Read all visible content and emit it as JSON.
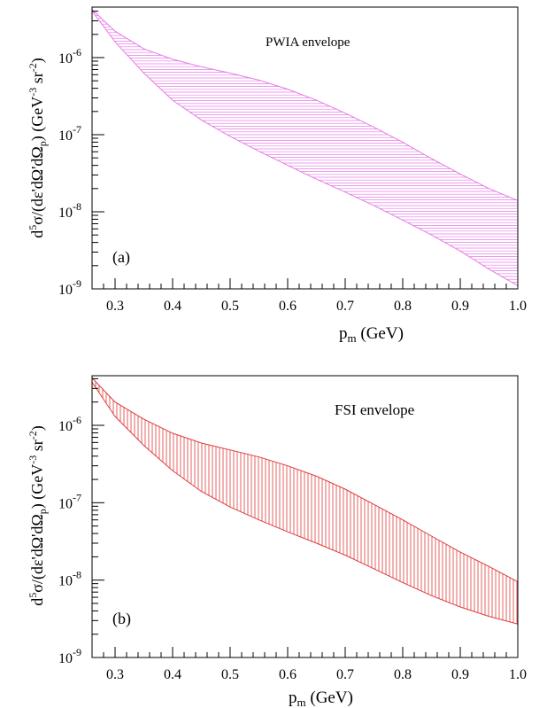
{
  "chart_data": [
    {
      "type": "area",
      "panel_label": "(a)",
      "annotation": "PWIA envelope",
      "xlabel_main": "p",
      "xlabel_sub": "m",
      "xlabel_unit": " (GeV)",
      "ylabel": "d^5σ/(dε'dΩ'dΩ_p) (GeV^-3 sr^-2)",
      "xscale": "linear",
      "yscale": "log",
      "xlim": [
        0.26,
        1.0
      ],
      "ylim": [
        1e-09,
        5e-06
      ],
      "xticks": [
        "0.3",
        "0.4",
        "0.5",
        "0.6",
        "0.7",
        "0.8",
        "0.9",
        "1.0"
      ],
      "yticks": [
        {
          "base": "10",
          "exp": "-9",
          "value": 1e-09
        },
        {
          "base": "10",
          "exp": "-8",
          "value": 1e-08
        },
        {
          "base": "10",
          "exp": "-7",
          "value": 1e-07
        },
        {
          "base": "10",
          "exp": "-6",
          "value": 1e-06
        }
      ],
      "fill_color": "#e67ae6",
      "hatch": "horizontal",
      "x": [
        0.26,
        0.3,
        0.35,
        0.4,
        0.45,
        0.5,
        0.55,
        0.6,
        0.65,
        0.7,
        0.75,
        0.8,
        0.85,
        0.9,
        0.95,
        1.0
      ],
      "upper": [
        4.2e-06,
        2.2e-06,
        1.3e-06,
        9.5e-07,
        7.6e-07,
        6.3e-07,
        5.1e-07,
        3.9e-07,
        2.8e-07,
        1.9e-07,
        1.25e-07,
        8e-08,
        4.9e-08,
        3.1e-08,
        2e-08,
        1.4e-08
      ],
      "lower": [
        4e-06,
        1.6e-06,
        6.3e-07,
        2.8e-07,
        1.55e-07,
        9.5e-08,
        6.1e-08,
        4e-08,
        2.65e-08,
        1.8e-08,
        1.2e-08,
        7.8e-09,
        5e-09,
        3.1e-09,
        1.8e-09,
        1.1e-09
      ]
    },
    {
      "type": "area",
      "panel_label": "(b)",
      "annotation": "FSI envelope",
      "xlabel_main": "p",
      "xlabel_sub": "m",
      "xlabel_unit": " (GeV)",
      "ylabel": "d^5σ/(dε'dΩ'dΩ_p) (GeV^-3 sr^-2)",
      "xscale": "linear",
      "yscale": "log",
      "xlim": [
        0.26,
        1.0
      ],
      "ylim": [
        1e-09,
        5e-06
      ],
      "xticks": [
        "0.3",
        "0.4",
        "0.5",
        "0.6",
        "0.7",
        "0.8",
        "0.9",
        "1.0"
      ],
      "yticks": [
        {
          "base": "10",
          "exp": "-9",
          "value": 1e-09
        },
        {
          "base": "10",
          "exp": "-8",
          "value": 1e-08
        },
        {
          "base": "10",
          "exp": "-7",
          "value": 1e-07
        },
        {
          "base": "10",
          "exp": "-6",
          "value": 1e-06
        }
      ],
      "fill_color": "#e03c3c",
      "hatch": "vertical",
      "x": [
        0.26,
        0.3,
        0.35,
        0.4,
        0.45,
        0.5,
        0.55,
        0.6,
        0.65,
        0.7,
        0.75,
        0.8,
        0.85,
        0.9,
        0.95,
        1.0
      ],
      "upper": [
        4.1e-06,
        2e-06,
        1.2e-06,
        7.9e-07,
        5.9e-07,
        4.8e-07,
        3.9e-07,
        3e-07,
        2.2e-07,
        1.5e-07,
        9.5e-08,
        6e-08,
        3.7e-08,
        2.3e-08,
        1.5e-08,
        9.5e-09
      ],
      "lower": [
        3.6e-06,
        1.3e-06,
        5.5e-07,
        2.6e-07,
        1.4e-07,
        8.8e-08,
        6e-08,
        4.2e-08,
        3e-08,
        2.1e-08,
        1.4e-08,
        9.3e-09,
        6.3e-09,
        4.5e-09,
        3.4e-09,
        2.7e-09
      ]
    }
  ]
}
